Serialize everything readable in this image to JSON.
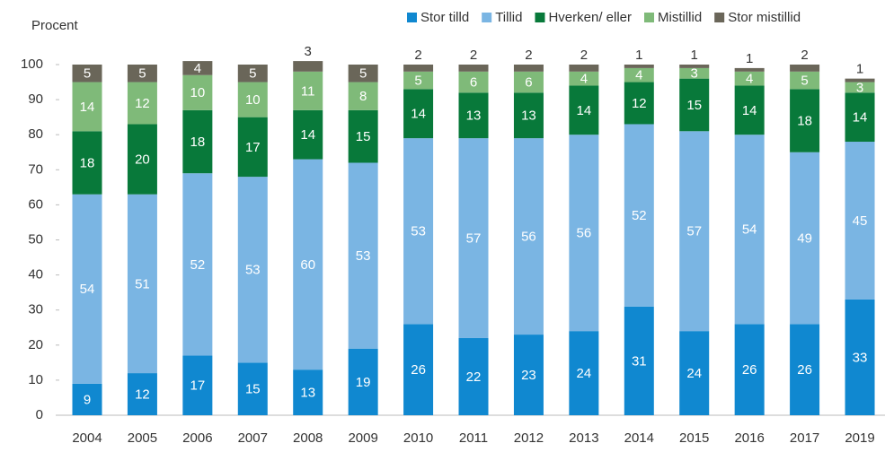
{
  "chart_data": {
    "type": "stacked_bar",
    "y_label": "Procent",
    "categories": [
      "2004",
      "2005",
      "2006",
      "2007",
      "2008",
      "2009",
      "2010",
      "2011",
      "2012",
      "2013",
      "2014",
      "2015",
      "2016",
      "2017",
      "2019"
    ],
    "series": [
      {
        "name": "Stor tilld",
        "color": "#1088d0",
        "values": [
          9,
          12,
          17,
          15,
          13,
          19,
          26,
          22,
          23,
          24,
          31,
          24,
          26,
          26,
          33
        ]
      },
      {
        "name": "Tillid",
        "color": "#7ab5e3",
        "values": [
          54,
          51,
          52,
          53,
          60,
          53,
          53,
          57,
          56,
          56,
          52,
          57,
          54,
          49,
          45
        ]
      },
      {
        "name": "Hverken/ eller",
        "color": "#08793a",
        "values": [
          18,
          20,
          18,
          17,
          14,
          15,
          14,
          13,
          13,
          14,
          12,
          15,
          14,
          18,
          14
        ]
      },
      {
        "name": "Mistillid",
        "color": "#7fba79",
        "values": [
          14,
          12,
          10,
          10,
          11,
          8,
          5,
          6,
          6,
          4,
          4,
          3,
          4,
          5,
          3
        ]
      },
      {
        "name": "Stor mistillid",
        "color": "#6a6659",
        "values": [
          5,
          5,
          4,
          5,
          3,
          5,
          2,
          2,
          2,
          2,
          1,
          1,
          1,
          2,
          1
        ]
      }
    ],
    "ylim": [
      0,
      100
    ],
    "yticks": [
      0,
      10,
      20,
      30,
      40,
      50,
      60,
      70,
      80,
      90,
      100
    ],
    "legend": "top-right"
  }
}
